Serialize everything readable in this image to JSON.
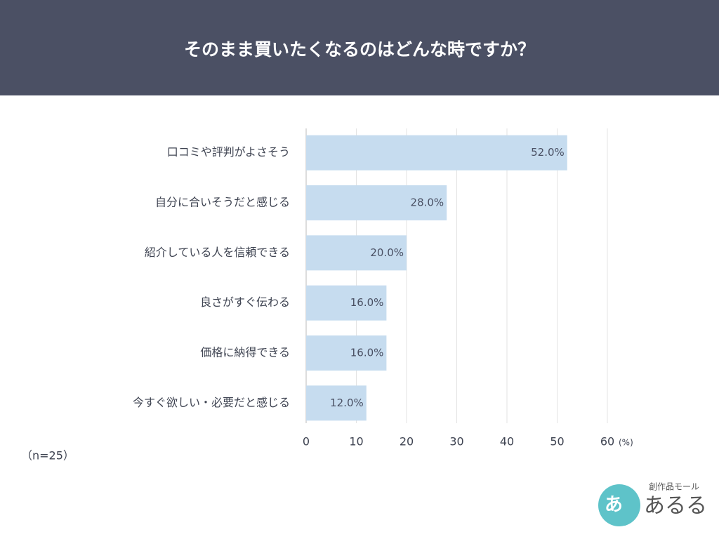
{
  "chart_data": {
    "type": "bar",
    "orientation": "horizontal",
    "title": "そのまま買いたくなるのはどんな時ですか？",
    "categories": [
      "口コミや評判がよさそう",
      "自分に合いそうだと感じる",
      "紹介している人を信頼できる",
      "良さがすぐ伝わる",
      "価格に納得できる",
      "今すぐ欲しい・必要だと感じる"
    ],
    "values": [
      52,
      28,
      20,
      16,
      16,
      12
    ],
    "value_labels": [
      "52.0%",
      "28.0%",
      "20.0%",
      "16.0%",
      "16.0%",
      "12.0%"
    ],
    "color": "#c6dcef",
    "xlim": [
      0,
      60
    ],
    "xticks": [
      0,
      10,
      20,
      30,
      40,
      50,
      60
    ],
    "grid": true,
    "xlabel": "(%)",
    "note": "（n=25）"
  },
  "logo": {
    "tagline": "創作品モール",
    "name": "あるる",
    "mark": "あ"
  }
}
